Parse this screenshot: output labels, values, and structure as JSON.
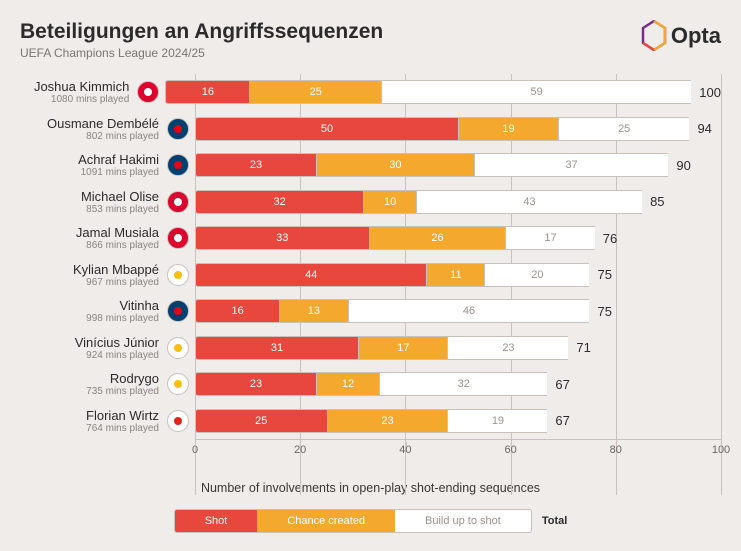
{
  "header": {
    "title": "Beteiligungen an Angriffssequenzen",
    "subtitle": "UEFA Champions League 2024/25",
    "brand": "Opta"
  },
  "chart": {
    "type": "stacked-bar",
    "x_max": 100,
    "x_ticks": [
      0,
      20,
      40,
      60,
      80,
      100
    ],
    "x_label": "Number of involvements in open-play shot-ending sequences",
    "colors": {
      "shot": "#e7473c",
      "chance": "#f4a82e",
      "buildup": "#ffffff",
      "border": "#c9c1bc",
      "bg": "#f0ecea",
      "grid": "#c9c1bc"
    },
    "players": [
      {
        "name": "Joshua Kimmich",
        "mins": "1080 mins played",
        "club": "bayern",
        "shot": 16,
        "chance": 25,
        "buildup": 59,
        "total": 100
      },
      {
        "name": "Ousmane Dembélé",
        "mins": "802 mins played",
        "club": "psg",
        "shot": 50,
        "chance": 19,
        "buildup": 25,
        "total": 94
      },
      {
        "name": "Achraf Hakimi",
        "mins": "1091 mins played",
        "club": "psg",
        "shot": 23,
        "chance": 30,
        "buildup": 37,
        "total": 90
      },
      {
        "name": "Michael Olise",
        "mins": "853 mins played",
        "club": "bayern",
        "shot": 32,
        "chance": 10,
        "buildup": 43,
        "total": 85
      },
      {
        "name": "Jamal Musiala",
        "mins": "866 mins played",
        "club": "bayern",
        "shot": 33,
        "chance": 26,
        "buildup": 17,
        "total": 76
      },
      {
        "name": "Kylian Mbappé",
        "mins": "967 mins played",
        "club": "real",
        "shot": 44,
        "chance": 11,
        "buildup": 20,
        "total": 75
      },
      {
        "name": "Vitinha",
        "mins": "998 mins played",
        "club": "psg",
        "shot": 16,
        "chance": 13,
        "buildup": 46,
        "total": 75
      },
      {
        "name": "Vinícius Júnior",
        "mins": "924 mins played",
        "club": "real",
        "shot": 31,
        "chance": 17,
        "buildup": 23,
        "total": 71
      },
      {
        "name": "Rodrygo",
        "mins": "735 mins played",
        "club": "real",
        "shot": 23,
        "chance": 12,
        "buildup": 32,
        "total": 67
      },
      {
        "name": "Florian Wirtz",
        "mins": "764 mins played",
        "club": "leverkusen",
        "shot": 25,
        "chance": 23,
        "buildup": 19,
        "total": 67
      }
    ]
  },
  "legend": {
    "shot": "Shot",
    "chance": "Chance created",
    "buildup": "Build up to shot",
    "total": "Total"
  },
  "clubs": {
    "bayern": {
      "bg": "#dc052d",
      "fg": "#ffffff"
    },
    "psg": {
      "bg": "#004170",
      "fg": "#e30613"
    },
    "real": {
      "bg": "#ffffff",
      "fg": "#febe10"
    },
    "leverkusen": {
      "bg": "#ffffff",
      "fg": "#e32219"
    }
  }
}
